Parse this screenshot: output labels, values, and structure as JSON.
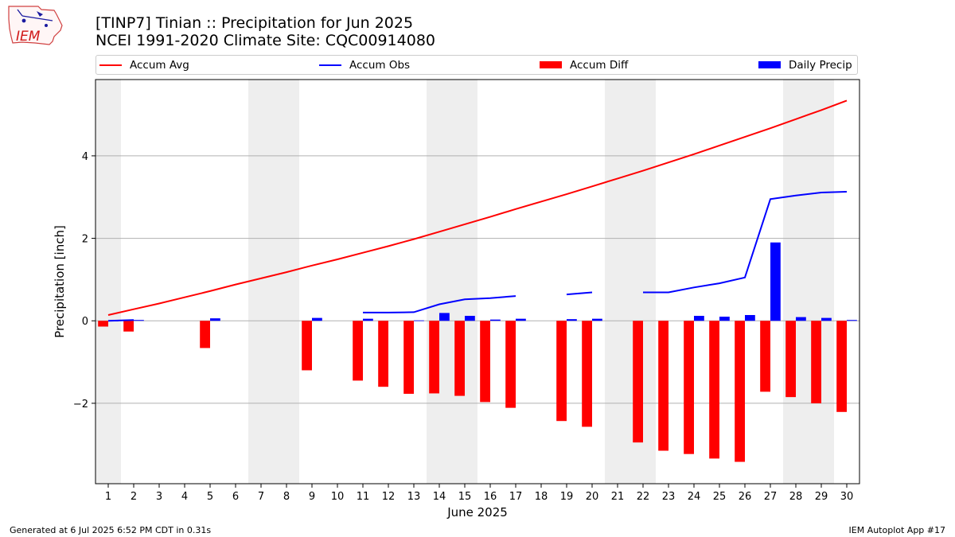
{
  "logo": {
    "text": "IEM"
  },
  "title_line1": "[TINP7] Tinian :: Precipitation for Jun 2025",
  "title_line2": "NCEI 1991-2020 Climate Site: CQC00914080",
  "legend": {
    "accum_avg": "Accum Avg",
    "accum_obs": "Accum Obs",
    "accum_diff": "Accum Diff",
    "daily_precip": "Daily Precip"
  },
  "colors": {
    "avg": "#ff0000",
    "obs": "#0000ff",
    "diff": "#ff0000",
    "daily": "#0000ff",
    "weekend": "#eeeeee",
    "grid": "#b0b0b0"
  },
  "chart_data": {
    "type": "bar",
    "xlabel": "June 2025",
    "ylabel": "Precipitation [inch]",
    "xlim": [
      0.5,
      30.5
    ],
    "ylim": [
      -3.95,
      5.85
    ],
    "yticks": [
      -2,
      0,
      2,
      4
    ],
    "ytick_labels": [
      "−2",
      "0",
      "2",
      "4"
    ],
    "grid": "horizontal",
    "days": [
      1,
      2,
      3,
      4,
      5,
      6,
      7,
      8,
      9,
      10,
      11,
      12,
      13,
      14,
      15,
      16,
      17,
      18,
      19,
      20,
      21,
      22,
      23,
      24,
      25,
      26,
      27,
      28,
      29,
      30
    ],
    "weekend_shading": [
      [
        0.5,
        1.5
      ],
      [
        6.5,
        8.5
      ],
      [
        13.5,
        15.5
      ],
      [
        20.5,
        22.5
      ],
      [
        27.5,
        29.5
      ]
    ],
    "series": [
      {
        "name": "Accum Avg",
        "kind": "line",
        "values": [
          0.14,
          0.28,
          0.42,
          0.57,
          0.72,
          0.88,
          1.03,
          1.18,
          1.34,
          1.49,
          1.65,
          1.81,
          1.98,
          2.16,
          2.34,
          2.52,
          2.71,
          2.89,
          3.07,
          3.26,
          3.45,
          3.64,
          3.84,
          4.04,
          4.25,
          4.46,
          4.67,
          4.89,
          5.11,
          5.34
        ]
      },
      {
        "name": "Accum Obs",
        "kind": "line",
        "values": [
          0.0,
          0.02,
          null,
          null,
          null,
          null,
          null,
          null,
          null,
          null,
          0.2,
          0.2,
          0.21,
          0.4,
          0.52,
          0.55,
          0.6,
          null,
          0.64,
          0.69,
          null,
          0.69,
          0.69,
          0.81,
          0.91,
          1.05,
          2.95,
          3.04,
          3.11,
          3.13
        ]
      },
      {
        "name": "Accum Diff",
        "kind": "bar",
        "values": [
          -0.14,
          -0.26,
          null,
          null,
          -0.66,
          null,
          null,
          null,
          -1.2,
          null,
          -1.45,
          -1.6,
          -1.77,
          -1.76,
          -1.82,
          -1.97,
          -2.11,
          null,
          -2.43,
          -2.57,
          null,
          -2.95,
          -3.15,
          -3.23,
          -3.34,
          -3.42,
          -1.72,
          -1.85,
          -2.0,
          -2.21
        ]
      },
      {
        "name": "Daily Precip",
        "kind": "bar",
        "values": [
          0.0,
          0.02,
          null,
          null,
          0.06,
          null,
          null,
          null,
          0.07,
          null,
          0.05,
          null,
          0.01,
          0.19,
          0.12,
          0.03,
          0.05,
          null,
          0.04,
          0.05,
          null,
          null,
          null,
          0.12,
          0.1,
          0.14,
          1.9,
          0.09,
          0.07,
          0.02
        ]
      }
    ]
  },
  "footer": {
    "left": "Generated at 6 Jul 2025 6:52 PM CDT in 0.31s",
    "right": "IEM Autoplot App #17"
  }
}
